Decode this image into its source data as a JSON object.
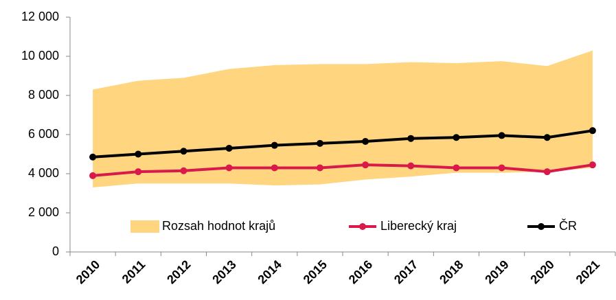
{
  "chart_data": {
    "type": "range_line",
    "categories": [
      "2010",
      "2011",
      "2012",
      "2013",
      "2014",
      "2015",
      "2016",
      "2017",
      "2018",
      "2019",
      "2020",
      "2021"
    ],
    "series": [
      {
        "name": "Rozsah hodnot krajů",
        "color": "#ffd580",
        "low": [
          3300,
          3500,
          3500,
          3500,
          3400,
          3450,
          3700,
          3850,
          4050,
          4050,
          4100,
          4300
        ],
        "high": [
          8300,
          8750,
          8900,
          9350,
          9550,
          9600,
          9600,
          9700,
          9650,
          9750,
          9500,
          10300
        ]
      },
      {
        "name": "Liberecký kraj",
        "color": "#d8194a",
        "values": [
          3900,
          4100,
          4150,
          4300,
          4300,
          4300,
          4450,
          4400,
          4300,
          4300,
          4100,
          4450
        ]
      },
      {
        "name": "ČR",
        "color": "#000000",
        "values": [
          4850,
          5000,
          5150,
          5300,
          5450,
          5550,
          5650,
          5800,
          5850,
          5950,
          5850,
          6200
        ]
      }
    ],
    "ylim": [
      0,
      12000
    ],
    "yticks": [
      0,
      {
        "value": 2000,
        "label": "2 000"
      },
      {
        "value": 4000,
        "label": "4 000"
      },
      {
        "value": 6000,
        "label": "6 000"
      },
      {
        "value": 8000,
        "label": "8 000"
      },
      {
        "value": 10000,
        "label": "10 000"
      },
      {
        "value": 12000,
        "label": "12 000"
      }
    ],
    "grid": false,
    "legend": "bottom"
  }
}
